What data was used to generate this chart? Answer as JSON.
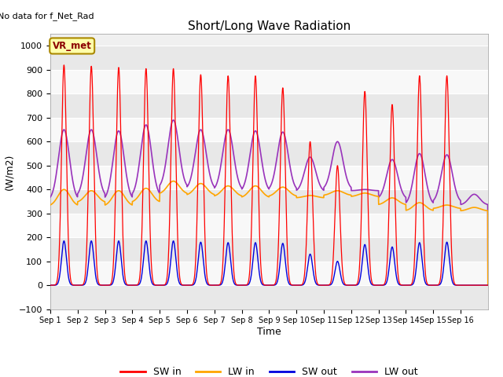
{
  "title": "Short/Long Wave Radiation",
  "ylabel": "(W/m2)",
  "xlabel": "Time",
  "topleft_text": "No data for f_Net_Rad",
  "box_label": "VR_met",
  "ylim_min": -100,
  "ylim_max": 1050,
  "plot_bg": "#f0f0f0",
  "fig_bg": "#ffffff",
  "sw_in_color": "#ff0000",
  "lw_in_color": "#ffa500",
  "sw_out_color": "#0000dd",
  "lw_out_color": "#9933bb",
  "x_tick_labels": [
    "Sep 1",
    "Sep 2",
    "Sep 3",
    "Sep 4",
    "Sep 5",
    "Sep 6",
    "Sep 7",
    "Sep 8",
    "Sep 9",
    "Sep 10",
    "Sep 11",
    "Sep 12",
    "Sep 13",
    "Sep 14",
    "Sep 15",
    "Sep 16"
  ],
  "sw_in_peaks": [
    920,
    915,
    910,
    905,
    905,
    880,
    875,
    875,
    825,
    600,
    500,
    810,
    755,
    875,
    875,
    0
  ],
  "lw_out_peaks": [
    650,
    650,
    645,
    670,
    690,
    650,
    650,
    645,
    640,
    535,
    600,
    400,
    525,
    550,
    545,
    380
  ],
  "lw_in_base": [
    330,
    345,
    330,
    345,
    380,
    375,
    370,
    365,
    370,
    365,
    375,
    370,
    335,
    310,
    320,
    310
  ],
  "lw_in_day_peak": [
    400,
    395,
    395,
    405,
    435,
    425,
    415,
    415,
    410,
    375,
    395,
    385,
    365,
    345,
    335,
    325
  ],
  "sw_out_peaks": [
    185,
    185,
    185,
    185,
    185,
    180,
    178,
    178,
    175,
    130,
    100,
    170,
    160,
    178,
    180,
    0
  ]
}
